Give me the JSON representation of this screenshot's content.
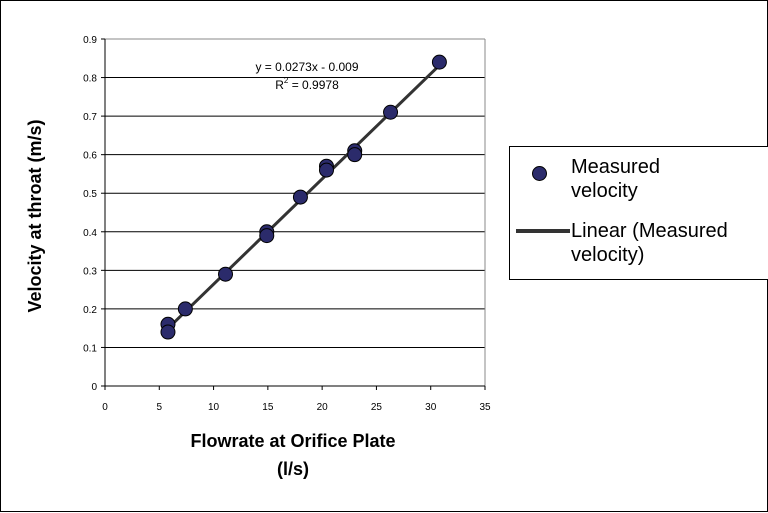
{
  "chart_data": {
    "type": "scatter",
    "xlabel_line1": "Flowrate at Orifice Plate",
    "xlabel_line2": "(l/s)",
    "ylabel": "Velocity at throat (m/s)",
    "xlim": [
      0,
      35
    ],
    "ylim": [
      0,
      0.9
    ],
    "x_ticks": [
      "0",
      "5",
      "10",
      "15",
      "20",
      "25",
      "30",
      "35"
    ],
    "y_ticks": [
      "0",
      "0.1",
      "0.2",
      "0.3",
      "0.4",
      "0.5",
      "0.6",
      "0.7",
      "0.8",
      "0.9"
    ],
    "grid": "horizontal",
    "series": [
      {
        "name": "Measured velocity",
        "kind": "scatter",
        "color": "#2b2b6b",
        "points": [
          [
            5.8,
            0.16
          ],
          [
            5.8,
            0.14
          ],
          [
            7.4,
            0.2
          ],
          [
            11.1,
            0.29
          ],
          [
            14.9,
            0.4
          ],
          [
            14.9,
            0.39
          ],
          [
            18.0,
            0.49
          ],
          [
            20.4,
            0.57
          ],
          [
            20.4,
            0.56
          ],
          [
            23.0,
            0.61
          ],
          [
            23.0,
            0.6
          ],
          [
            26.3,
            0.71
          ],
          [
            30.8,
            0.84
          ]
        ]
      },
      {
        "name": "Linear (Measured velocity)",
        "kind": "trendline",
        "color": "#333333",
        "slope": 0.0273,
        "intercept": -0.009,
        "x_range": [
          5.8,
          30.8
        ]
      }
    ],
    "annotations": {
      "equation": "y = 0.0273x - 0.009",
      "r2_prefix": "R",
      "r2_sup": "2",
      "r2_value": " = 0.9978"
    },
    "legend": {
      "position": "right",
      "items": [
        {
          "line1": "Measured",
          "line2": "velocity",
          "marker": "dot"
        },
        {
          "line1": "Linear (Measured",
          "line2": "velocity)",
          "marker": "line"
        }
      ]
    }
  }
}
